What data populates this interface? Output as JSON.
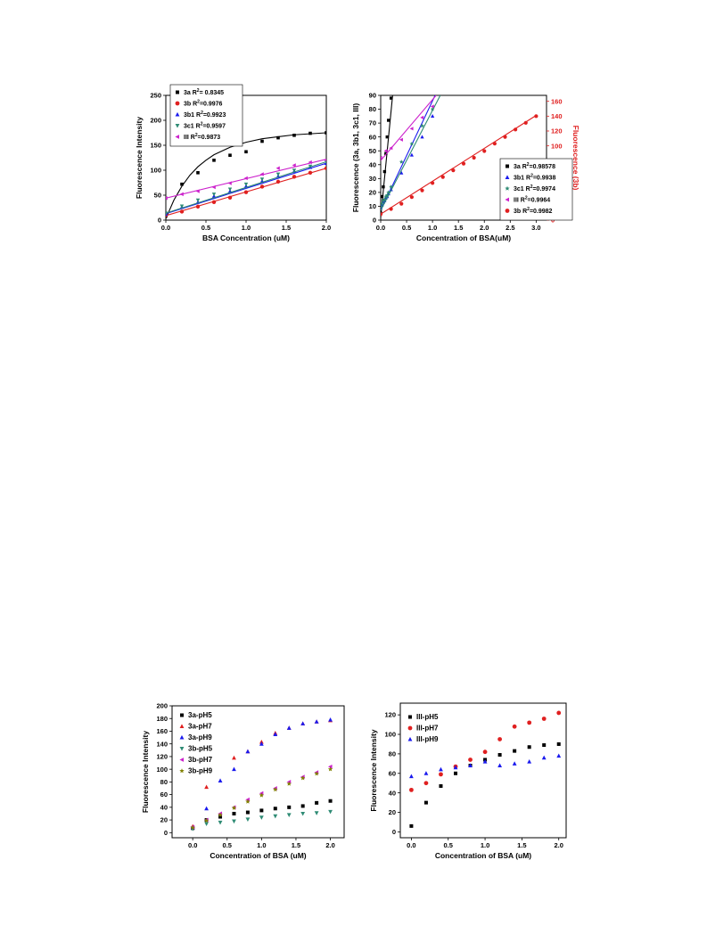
{
  "chart_data": [
    {
      "type": "scatter",
      "xlabel": "BSA Concentration (uM)",
      "ylabel": "Fluorescence Intensity",
      "xlim": [
        0,
        2.0
      ],
      "ylim": [
        0,
        250
      ],
      "xticks": [
        "0.0",
        "0.5",
        "1.0",
        "1.5",
        "2.0"
      ],
      "yticks": [
        "0",
        "50",
        "100",
        "150",
        "200",
        "250"
      ],
      "legend_position": "top-left",
      "series": [
        {
          "name": "3a",
          "r2_label": "3a R²= 0.8345",
          "color": "#000000",
          "marker": "square",
          "x": [
            0,
            0.2,
            0.4,
            0.6,
            0.8,
            1.0,
            1.2,
            1.4,
            1.6,
            1.8,
            2.0
          ],
          "y": [
            8,
            72,
            95,
            120,
            130,
            137,
            158,
            165,
            170,
            174,
            175
          ],
          "fit": {
            "type": "hyperbolic",
            "x": [
              0,
              0.1,
              0.2,
              0.3,
              0.4,
              0.5,
              0.6,
              0.8,
              1.0,
              1.2,
              1.4,
              1.6,
              1.8,
              2.0
            ],
            "y": [
              3,
              40,
              68,
              90,
              107,
              120,
              131,
              146,
              156,
              163,
              167,
              171,
              173,
              175
            ]
          }
        },
        {
          "name": "3b",
          "r2_label": "3b R²=0.9976",
          "color": "#e02020",
          "marker": "circle",
          "x": [
            0,
            0.2,
            0.4,
            0.6,
            0.8,
            1.0,
            1.2,
            1.4,
            1.6,
            1.8,
            2.0
          ],
          "y": [
            10,
            17,
            27,
            36,
            45,
            56,
            67,
            77,
            87,
            95,
            104
          ],
          "fit": {
            "type": "line",
            "x": [
              0,
              2.0
            ],
            "y": [
              9,
              104
            ]
          }
        },
        {
          "name": "3b1",
          "r2_label": "3b1 R²=0.9923",
          "color": "#1a1aee",
          "marker": "triangle-up",
          "x": [
            0,
            0.2,
            0.4,
            0.6,
            0.8,
            1.0,
            1.2,
            1.4,
            1.6,
            1.8,
            2.0
          ],
          "y": [
            12,
            26,
            36,
            48,
            58,
            68,
            78,
            88,
            98,
            106,
            114
          ],
          "fit": {
            "type": "line",
            "x": [
              0,
              2.0
            ],
            "y": [
              13,
              114
            ]
          }
        },
        {
          "name": "3c1",
          "r2_label": "3c1 R²=0.9597",
          "color": "#2e8b74",
          "marker": "triangle-down",
          "x": [
            0,
            0.2,
            0.4,
            0.6,
            0.8,
            1.0,
            1.2,
            1.4,
            1.6,
            1.8,
            2.0
          ],
          "y": [
            14,
            28,
            40,
            52,
            62,
            72,
            82,
            92,
            100,
            108,
            117
          ],
          "fit": {
            "type": "line",
            "x": [
              0,
              2.0
            ],
            "y": [
              14,
              117
            ]
          }
        },
        {
          "name": "III",
          "r2_label": "III R²=0.9873",
          "color": "#cc22cc",
          "marker": "triangle-left",
          "x": [
            0,
            0.2,
            0.4,
            0.6,
            0.8,
            1.0,
            1.2,
            1.4,
            1.6,
            1.8,
            2.0
          ],
          "y": [
            44,
            52,
            58,
            66,
            74,
            84,
            92,
            104,
            110,
            116,
            120
          ],
          "fit": {
            "type": "line",
            "x": [
              0,
              2.0
            ],
            "y": [
              44,
              122
            ]
          }
        }
      ]
    },
    {
      "type": "scatter",
      "xlabel": "Concentration of BSA(uM)",
      "ylabel": "Fluorescence (3a, 3b1, 3c1, III)",
      "ylabel_right": "Fluorescence (3b)",
      "xlim": [
        0,
        3.2
      ],
      "ylim": [
        0,
        90
      ],
      "ylim_right": [
        0,
        168
      ],
      "xticks": [
        "0.0",
        "0.5",
        "1.0",
        "1.5",
        "2.0",
        "2.5",
        "3.0"
      ],
      "yticks": [
        "0",
        "10",
        "20",
        "30",
        "40",
        "50",
        "60",
        "70",
        "80",
        "90"
      ],
      "yticks_right": [
        "0",
        "20",
        "40",
        "60",
        "80",
        "100",
        "120",
        "140",
        "160"
      ],
      "legend_position": "bottom-right",
      "series": [
        {
          "name": "3a",
          "r2_label": "3a R²=0.98578",
          "color": "#000000",
          "marker": "square",
          "axis": "left",
          "x": [
            0,
            0.025,
            0.05,
            0.075,
            0.1,
            0.125,
            0.15,
            0.2
          ],
          "y": [
            5,
            17,
            24,
            35,
            48,
            60,
            72,
            88
          ],
          "fit": {
            "type": "line",
            "x": [
              0,
              0.23
            ],
            "y": [
              2,
              90
            ]
          }
        },
        {
          "name": "3b1",
          "r2_label": "3b1 R²=0.9938",
          "color": "#1a1aee",
          "marker": "triangle-up",
          "axis": "left",
          "x": [
            0,
            0.025,
            0.05,
            0.075,
            0.1,
            0.125,
            0.15,
            0.2,
            0.4,
            0.6,
            0.8,
            1.0
          ],
          "y": [
            9,
            11,
            13,
            14,
            16,
            17,
            19,
            22,
            34,
            47,
            60,
            75
          ],
          "fit": {
            "type": "line",
            "x": [
              0,
              1.05
            ],
            "y": [
              7,
              90
            ]
          }
        },
        {
          "name": "3c1",
          "r2_label": "3c1 R²=0.9974",
          "color": "#2e8b74",
          "marker": "star",
          "axis": "left",
          "x": [
            0,
            0.025,
            0.05,
            0.075,
            0.1,
            0.125,
            0.15,
            0.2,
            0.4,
            0.6,
            0.8,
            1.0
          ],
          "y": [
            10,
            12,
            14,
            15,
            17,
            18,
            20,
            24,
            42,
            55,
            68,
            80
          ],
          "fit": {
            "type": "line",
            "x": [
              0,
              1.15
            ],
            "y": [
              7,
              90
            ]
          }
        },
        {
          "name": "III",
          "r2_label": "III R²=0.9964",
          "color": "#cc22cc",
          "marker": "triangle-left",
          "axis": "left",
          "x": [
            0,
            0.1,
            0.2,
            0.4,
            0.6,
            0.8,
            1.0
          ],
          "y": [
            45,
            50,
            52,
            58,
            66,
            74,
            82
          ],
          "fit": {
            "type": "line",
            "x": [
              0,
              1.07
            ],
            "y": [
              43,
              90
            ]
          }
        },
        {
          "name": "3b",
          "r2_label": "3b R²=0.9982",
          "color": "#e02020",
          "marker": "circle",
          "axis": "right",
          "x": [
            0,
            0.2,
            0.4,
            0.6,
            0.8,
            1.0,
            1.2,
            1.4,
            1.6,
            1.8,
            2.0,
            2.2,
            2.4,
            2.6,
            2.8,
            3.0
          ],
          "y": [
            8,
            15,
            22,
            31,
            40,
            50,
            58,
            67,
            76,
            84,
            93,
            103,
            112,
            122,
            131,
            140
          ],
          "fit": {
            "type": "line",
            "x": [
              0,
              3.0
            ],
            "y": [
              8,
              141
            ]
          }
        }
      ]
    },
    {
      "type": "scatter",
      "xlabel": "Concentration of BSA (uM)",
      "ylabel": "Fluorescence Intensity",
      "xlim": [
        -0.3,
        2.2
      ],
      "ylim": [
        -8,
        200
      ],
      "xticks": [
        "0.0",
        "0.5",
        "1.0",
        "1.5",
        "2.0"
      ],
      "yticks": [
        "0",
        "20",
        "40",
        "60",
        "80",
        "100",
        "120",
        "140",
        "160",
        "180",
        "200"
      ],
      "legend_position": "top-left",
      "series": [
        {
          "name": "3a-pH5",
          "color": "#000000",
          "marker": "square",
          "x": [
            0,
            0.2,
            0.4,
            0.6,
            0.8,
            1.0,
            1.2,
            1.4,
            1.6,
            1.8,
            2.0
          ],
          "y": [
            7,
            20,
            25,
            30,
            32,
            35,
            38,
            40,
            42,
            47,
            50
          ]
        },
        {
          "name": "3a-pH7",
          "color": "#e02020",
          "marker": "triangle-up",
          "x": [
            0,
            0.2,
            0.4,
            0.6,
            0.8,
            1.0,
            1.2,
            1.4,
            1.6,
            1.8,
            2.0
          ],
          "y": [
            10,
            72,
            95,
            118,
            128,
            143,
            157,
            165,
            172,
            175,
            177
          ]
        },
        {
          "name": "3a-pH9",
          "color": "#1a1aee",
          "marker": "triangle-up",
          "x": [
            0,
            0.2,
            0.4,
            0.6,
            0.8,
            1.0,
            1.2,
            1.4,
            1.6,
            1.8,
            2.0
          ],
          "y": [
            8,
            38,
            82,
            100,
            128,
            140,
            155,
            165,
            172,
            175,
            178
          ]
        },
        {
          "name": "3b-pH5",
          "color": "#2e8b74",
          "marker": "triangle-down",
          "x": [
            0,
            0.2,
            0.4,
            0.6,
            0.8,
            1.0,
            1.2,
            1.4,
            1.6,
            1.8,
            2.0
          ],
          "y": [
            6,
            14,
            16,
            18,
            21,
            24,
            26,
            28,
            30,
            31,
            33
          ]
        },
        {
          "name": "3b-pH7",
          "color": "#cc22cc",
          "marker": "triangle-left",
          "x": [
            0,
            0.2,
            0.4,
            0.6,
            0.8,
            1.0,
            1.2,
            1.4,
            1.6,
            1.8,
            2.0
          ],
          "y": [
            9,
            20,
            30,
            40,
            52,
            62,
            70,
            80,
            88,
            95,
            104
          ]
        },
        {
          "name": "3b-pH9",
          "color": "#808000",
          "marker": "star",
          "x": [
            0,
            0.2,
            0.4,
            0.6,
            0.8,
            1.0,
            1.2,
            1.4,
            1.6,
            1.8,
            2.0
          ],
          "y": [
            8,
            19,
            28,
            39,
            49,
            59,
            68,
            77,
            86,
            93,
            100
          ]
        }
      ]
    },
    {
      "type": "scatter",
      "xlabel": "Concentration of BSA (uM)",
      "ylabel": "Fluorescence Intensity",
      "xlim": [
        -0.15,
        2.1
      ],
      "ylim": [
        -6,
        132
      ],
      "xticks": [
        "0.0",
        "0.5",
        "1.0",
        "1.5",
        "2.0"
      ],
      "yticks": [
        "0",
        "20",
        "40",
        "60",
        "80",
        "100",
        "120"
      ],
      "legend_position": "top-left",
      "series": [
        {
          "name": "III-pH5",
          "color": "#000000",
          "marker": "square",
          "x": [
            0,
            0.2,
            0.4,
            0.6,
            0.8,
            1.0,
            1.2,
            1.4,
            1.6,
            1.8,
            2.0
          ],
          "y": [
            6,
            30,
            47,
            60,
            68,
            74,
            79,
            83,
            87,
            89,
            90
          ]
        },
        {
          "name": "III-pH7",
          "color": "#e02020",
          "marker": "circle",
          "x": [
            0,
            0.2,
            0.4,
            0.6,
            0.8,
            1.0,
            1.2,
            1.4,
            1.6,
            1.8,
            2.0
          ],
          "y": [
            43,
            50,
            59,
            67,
            74,
            82,
            95,
            108,
            112,
            116,
            122
          ]
        },
        {
          "name": "III-pH9",
          "color": "#1a1aee",
          "marker": "triangle-up",
          "x": [
            0,
            0.2,
            0.4,
            0.6,
            0.8,
            1.0,
            1.2,
            1.4,
            1.6,
            1.8,
            2.0
          ],
          "y": [
            57,
            60,
            64,
            66,
            68,
            72,
            68,
            70,
            72,
            76,
            78
          ]
        }
      ]
    }
  ]
}
